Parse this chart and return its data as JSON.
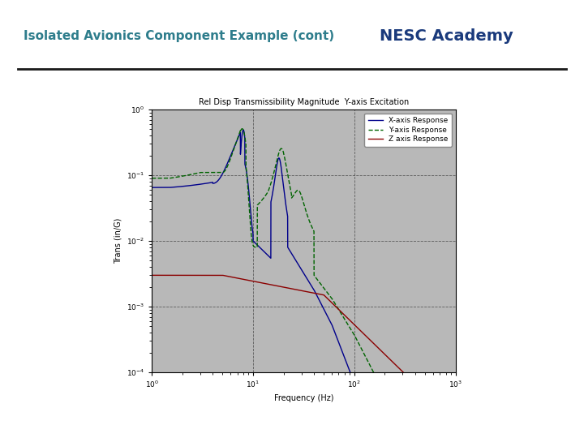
{
  "title": "Isolated Avionics Component Example (cont)",
  "nesc_title": "NESC Academy",
  "title_color": "#2E7D8C",
  "nesc_color": "#1A3A7C",
  "header_line_color": "#1a1a1a",
  "bg_color": "#ffffff",
  "plot_bg_color": "#b8b8b8",
  "chart_bg_color": "#d0d0d0",
  "chart_title": "Rel Disp Transmissibility Magnitude  Y-axis Excitation",
  "xlabel": "Frequency (Hz)",
  "ylabel": "Trans (in/G)",
  "xlim_log": [
    0,
    3
  ],
  "ylim_log": [
    -4,
    0
  ],
  "legend_labels": [
    "X-axis Response",
    "Y-axis Response",
    "Z axis Response"
  ],
  "line_colors": [
    "#00008B",
    "#006400",
    "#8B0000"
  ],
  "line_styles": [
    "-",
    "--",
    "-"
  ],
  "grid_color": "#000000",
  "grid_linestyle": "--",
  "grid_alpha": 0.5
}
